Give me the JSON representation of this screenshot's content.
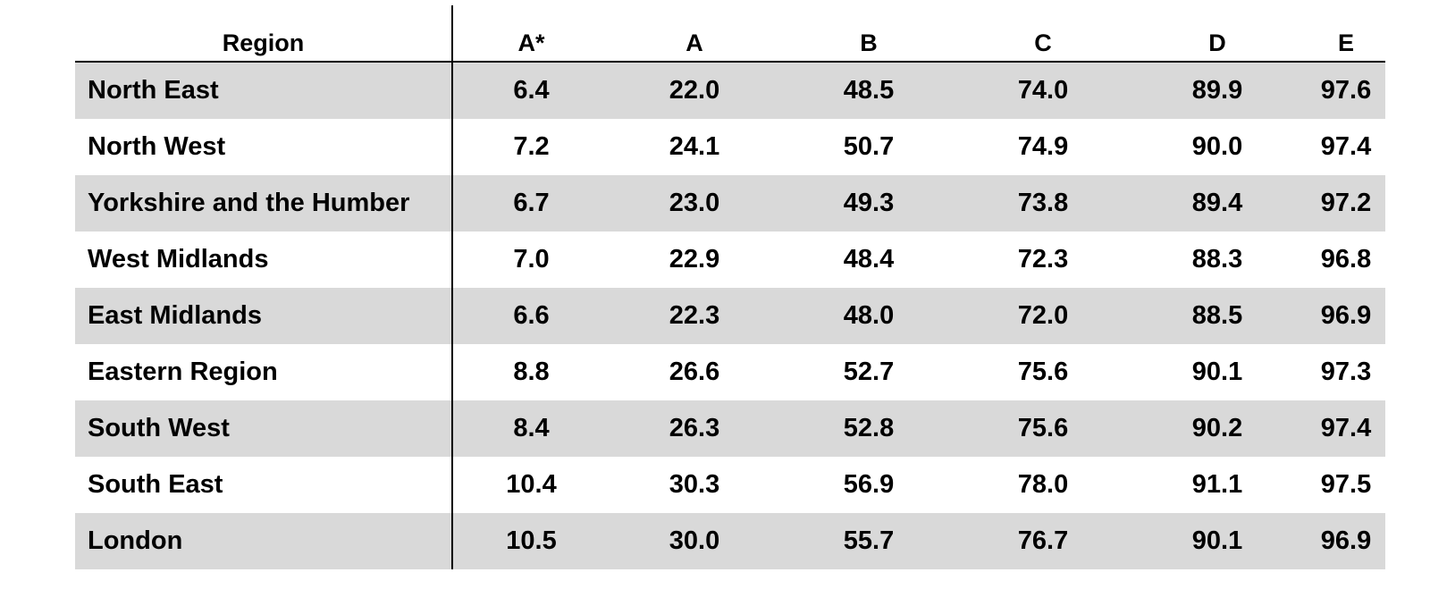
{
  "table": {
    "columns": [
      "Region",
      "A*",
      "A",
      "B",
      "C",
      "D",
      "E"
    ],
    "rows": [
      {
        "region": "North East",
        "values": [
          "6.4",
          "22.0",
          "48.5",
          "74.0",
          "89.9",
          "97.6"
        ]
      },
      {
        "region": "North West",
        "values": [
          "7.2",
          "24.1",
          "50.7",
          "74.9",
          "90.0",
          "97.4"
        ]
      },
      {
        "region": "Yorkshire and the Humber",
        "values": [
          "6.7",
          "23.0",
          "49.3",
          "73.8",
          "89.4",
          "97.2"
        ]
      },
      {
        "region": "West Midlands",
        "values": [
          "7.0",
          "22.9",
          "48.4",
          "72.3",
          "88.3",
          "96.8"
        ]
      },
      {
        "region": "East Midlands",
        "values": [
          "6.6",
          "22.3",
          "48.0",
          "72.0",
          "88.5",
          "96.9"
        ]
      },
      {
        "region": "Eastern Region",
        "values": [
          "8.8",
          "26.6",
          "52.7",
          "75.6",
          "90.1",
          "97.3"
        ]
      },
      {
        "region": "South West",
        "values": [
          "8.4",
          "26.3",
          "52.8",
          "75.6",
          "90.2",
          "97.4"
        ]
      },
      {
        "region": "South East",
        "values": [
          "10.4",
          "30.3",
          "56.9",
          "78.0",
          "91.1",
          "97.5"
        ]
      },
      {
        "region": "London",
        "values": [
          "10.5",
          "30.0",
          "55.7",
          "76.7",
          "90.1",
          "96.9"
        ]
      }
    ],
    "shaded_color": "#d9d9d9"
  }
}
